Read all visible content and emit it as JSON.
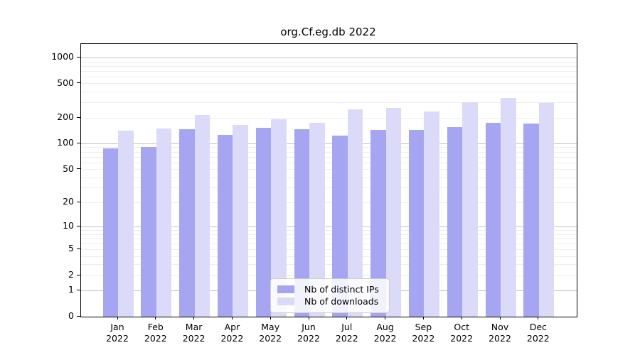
{
  "chart_data": {
    "type": "bar",
    "title": "org.Cf.eg.db 2022",
    "categories": [
      "Jan",
      "Feb",
      "Mar",
      "Apr",
      "May",
      "Jun",
      "Jul",
      "Aug",
      "Sep",
      "Oct",
      "Nov",
      "Dec"
    ],
    "year": "2022",
    "series": [
      {
        "name": "Nb of distinct IPs",
        "color": "#a5a5f2",
        "values": [
          88,
          92,
          149,
          126,
          155,
          149,
          124,
          146,
          144,
          156,
          176,
          173
        ]
      },
      {
        "name": "Nb of downloads",
        "color": "#dbdbf9",
        "values": [
          142,
          152,
          216,
          167,
          192,
          175,
          251,
          263,
          237,
          307,
          340,
          301
        ]
      }
    ],
    "yscale": "log1p",
    "y_ticks": [
      0,
      1,
      2,
      5,
      10,
      20,
      50,
      100,
      200,
      500,
      1000
    ],
    "ylim": [
      0,
      1450
    ],
    "xlabel": "",
    "ylabel": "",
    "grid": true,
    "legend_position": "lower center",
    "colors": {
      "axis": "#000000",
      "grid_minor": "#ededed",
      "grid_major": "#c4c4c4",
      "background": "#ffffff"
    }
  }
}
